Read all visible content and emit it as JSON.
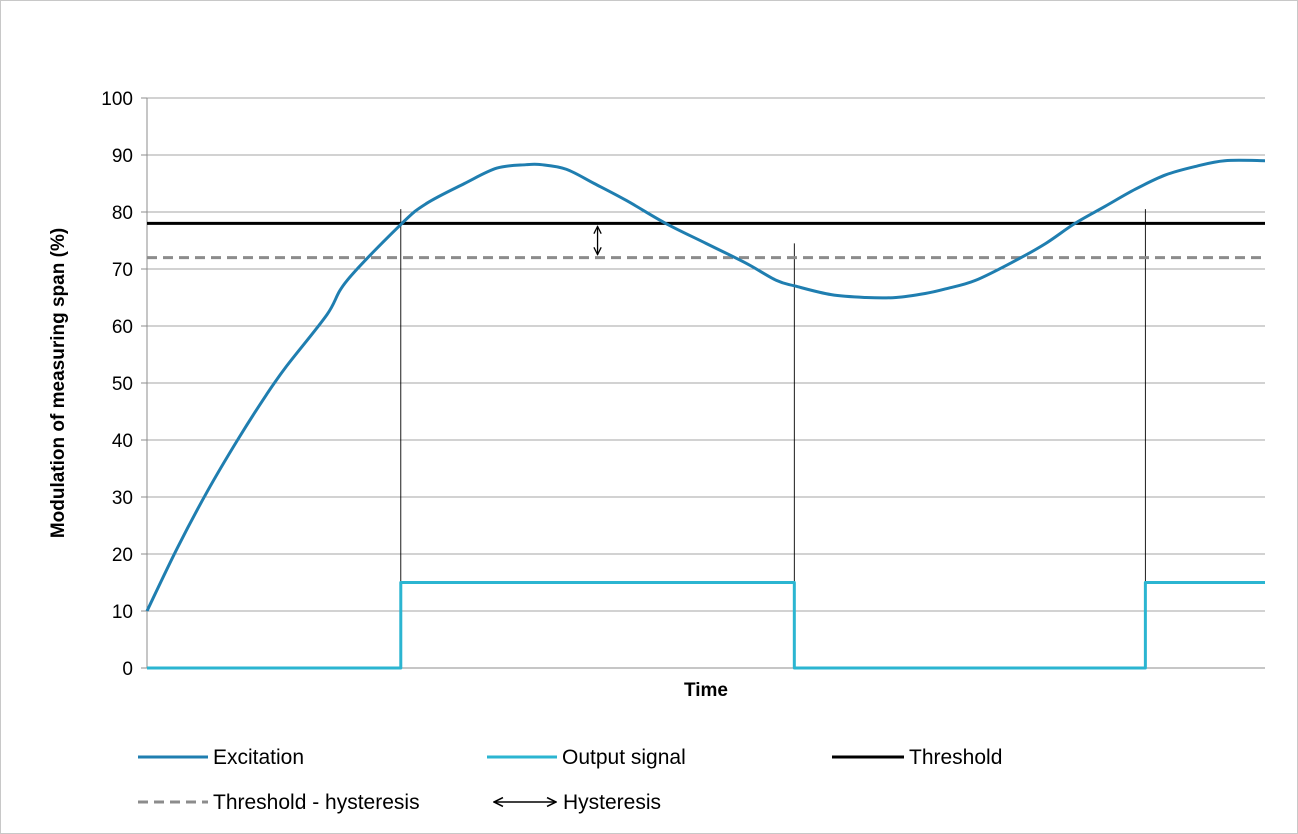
{
  "chart_data": {
    "type": "line",
    "title": "",
    "xlabel": "Time",
    "ylabel": "Modulation of measuring span (%)",
    "ylim": [
      0,
      100
    ],
    "xlim": [
      0,
      1
    ],
    "y_ticks": [
      0,
      10,
      20,
      30,
      40,
      50,
      60,
      70,
      80,
      90,
      100
    ],
    "grid": true,
    "legend_position": "bottom",
    "series": [
      {
        "name": "Excitation",
        "color": "#1f7eb0",
        "style": "solid",
        "x": [
          0,
          0.027,
          0.054,
          0.081,
          0.107,
          0.125,
          0.161,
          0.179,
          0.228,
          0.25,
          0.284,
          0.313,
          0.339,
          0.353,
          0.375,
          0.4,
          0.429,
          0.464,
          0.5,
          0.536,
          0.563,
          0.58,
          0.612,
          0.643,
          0.67,
          0.696,
          0.714,
          0.741,
          0.777,
          0.804,
          0.83,
          0.857,
          0.884,
          0.911,
          0.938,
          0.964,
          1.0
        ],
        "y": [
          10,
          21,
          31,
          40,
          48,
          53,
          62,
          68,
          78,
          81.5,
          85,
          87.7,
          88.3,
          88.3,
          87.5,
          85,
          82,
          78,
          74.5,
          71,
          68,
          67,
          65.5,
          65,
          65,
          65.7,
          66.5,
          68,
          71.5,
          74.5,
          78,
          81,
          84,
          86.5,
          88,
          89,
          89
        ]
      },
      {
        "name": "Output signal",
        "color": "#2bb5d1",
        "style": "step",
        "x": [
          0,
          0.227,
          0.227,
          0.579,
          0.579,
          0.893,
          0.893,
          1.0
        ],
        "y": [
          0,
          0,
          15,
          15,
          0,
          0,
          15,
          15
        ]
      },
      {
        "name": "Threshold",
        "color": "#000000",
        "style": "solid",
        "x": [
          0,
          1
        ],
        "y": [
          78,
          78
        ]
      },
      {
        "name": "Threshold - hysteresis",
        "color": "#8c8c8c",
        "style": "dashed",
        "x": [
          0,
          1
        ],
        "y": [
          72,
          72
        ]
      }
    ],
    "annotations": [
      {
        "name": "Hysteresis",
        "type": "double-arrow",
        "x": 0.403,
        "y_from": 72,
        "y_to": 78,
        "color": "#000000"
      }
    ],
    "guide_lines": [
      {
        "x": 0.227,
        "y_top": 80.5
      },
      {
        "x": 0.579,
        "y_top": 74.5
      },
      {
        "x": 0.893,
        "y_top": 80.5
      }
    ],
    "legend": [
      {
        "label": "Excitation",
        "color": "#1f7eb0",
        "style": "solid"
      },
      {
        "label": "Output signal",
        "color": "#2bb5d1",
        "style": "solid"
      },
      {
        "label": "Threshold",
        "color": "#000000",
        "style": "solid"
      },
      {
        "label": "Threshold - hysteresis",
        "color": "#8c8c8c",
        "style": "dashed"
      },
      {
        "label": "Hysteresis",
        "color": "#000000",
        "style": "double-arrow"
      }
    ]
  }
}
